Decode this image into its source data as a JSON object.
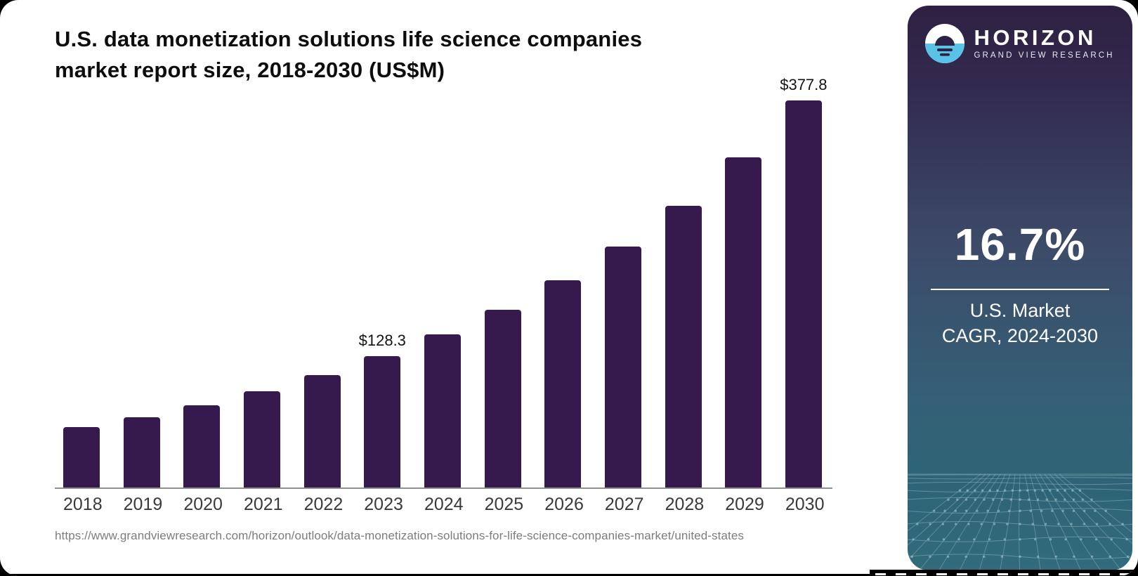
{
  "page": {
    "title_lines": [
      "U.S. data monetization solutions life science companies",
      "market report size, 2018-2030 (US$M)"
    ],
    "source_url": "https://www.grandviewresearch.com/horizon/outlook/data-monetization-solutions-for-life-science-companies-market/united-states"
  },
  "chart_data": {
    "type": "bar",
    "title": "U.S. data monetization solutions life science companies market report size, 2018-2030 (US$M)",
    "unit": "US$M",
    "categories": [
      "2018",
      "2019",
      "2020",
      "2021",
      "2022",
      "2023",
      "2024",
      "2025",
      "2026",
      "2027",
      "2028",
      "2029",
      "2030"
    ],
    "values": [
      59.0,
      68.9,
      80.3,
      94.2,
      110.0,
      128.3,
      149.2,
      173.8,
      202.3,
      235.4,
      274.8,
      322.5,
      377.8
    ],
    "annotations": [
      {
        "category": "2023",
        "text": "$128.3"
      },
      {
        "category": "2030",
        "text": "$377.8"
      }
    ],
    "ylim": [
      0,
      390
    ],
    "grid": false,
    "legend": "none",
    "bar_color": "#371a4d"
  },
  "sidebar": {
    "logo": {
      "icon": "horizon-sun-logo",
      "brand": "HORIZON",
      "tagline": "GRAND VIEW RESEARCH"
    },
    "stat_value": "16.7%",
    "stat_caption_lines": [
      "U.S. Market",
      "CAGR, 2024-2030"
    ],
    "colors": {
      "gradient_top": "#2e2042",
      "gradient_mid": "#3c4a68",
      "gradient_bottom": "#316b7c",
      "logo_blue": "#5bc2e7",
      "logo_dark": "#2d2245"
    }
  },
  "colors": {
    "bar": "#371a4d",
    "axis_line": "#909090",
    "year_label": "#3a3a3a",
    "url_text": "#7c7c7c",
    "card_bg": "#ffffff",
    "page_bg": "#000000"
  }
}
